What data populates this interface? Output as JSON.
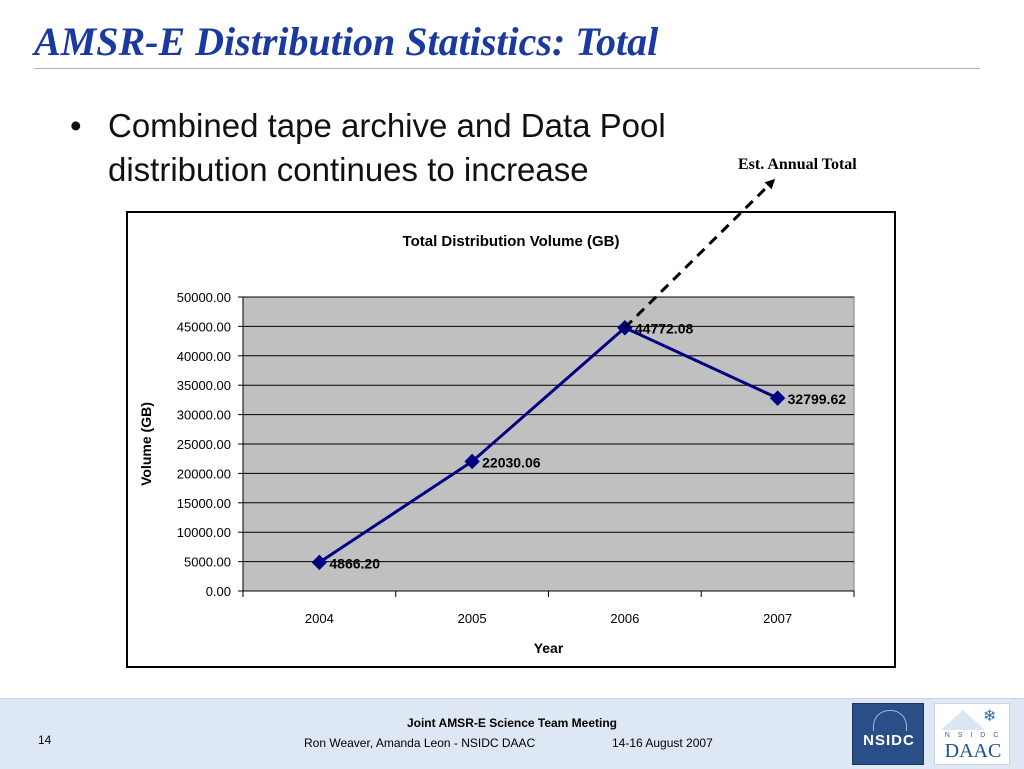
{
  "slide": {
    "title": "AMSR-E Distribution Statistics: Total",
    "bullet_symbol": "•",
    "bullet_text": "Combined tape archive and Data Pool distribution continues to increase",
    "annotation": "Est. Annual Total"
  },
  "footer": {
    "page_number": "14",
    "meeting": "Joint AMSR-E Science Team Meeting",
    "authors": "Ron Weaver, Amanda Leon - NSIDC DAAC",
    "date": "14-16 August 2007",
    "logo_nsidc": "NSIDC",
    "logo_daac_small": "N S I D C",
    "logo_daac_big": "DAAC"
  },
  "chart_data": {
    "type": "line",
    "title": "Total Distribution Volume (GB)",
    "xlabel": "Year",
    "ylabel": "Volume (GB)",
    "categories": [
      "2004",
      "2005",
      "2006",
      "2007"
    ],
    "series": [
      {
        "values": [
          4866.2,
          22030.06,
          44772.08,
          32799.62
        ]
      }
    ],
    "data_labels": [
      "4866.20",
      "22030.06",
      "44772.08",
      "32799.62"
    ],
    "ylim": [
      0,
      50000
    ],
    "ytick_step": 5000,
    "ytick_labels": [
      "0.00",
      "5000.00",
      "10000.00",
      "15000.00",
      "20000.00",
      "25000.00",
      "30000.00",
      "35000.00",
      "40000.00",
      "45000.00",
      "50000.00"
    ],
    "grid": true,
    "plot_background": "#c0c0c0",
    "line_color": "#000080",
    "marker": "diamond",
    "legend": "none"
  },
  "colors": {
    "title": "#1a3aa0",
    "footer_bg": "#dde8f4",
    "arrow": "#000000"
  }
}
